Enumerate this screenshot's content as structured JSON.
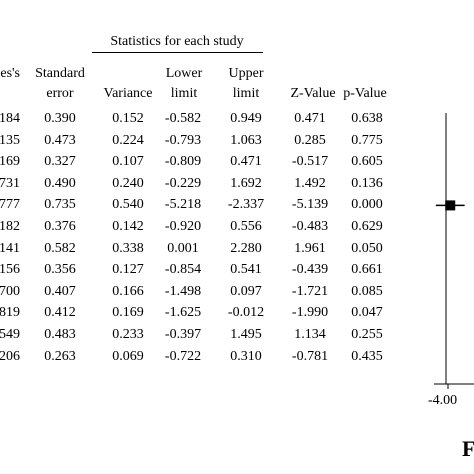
{
  "chart_data": {
    "type": "table",
    "title": "Statistics for each study",
    "columns": [
      {
        "key": "hedges",
        "header_lines": [
          "es's"
        ]
      },
      {
        "key": "se",
        "header_lines": [
          "Standard",
          "error"
        ]
      },
      {
        "key": "var",
        "header_lines": [
          "Variance"
        ]
      },
      {
        "key": "lower",
        "header_lines": [
          "Lower",
          "limit"
        ]
      },
      {
        "key": "upper",
        "header_lines": [
          "Upper",
          "limit"
        ]
      },
      {
        "key": "z",
        "header_lines": [
          "Z-Value"
        ]
      },
      {
        "key": "p",
        "header_lines": [
          "p-Value"
        ]
      }
    ],
    "rows": [
      [
        "184",
        "0.390",
        "0.152",
        "-0.582",
        "0.949",
        "0.471",
        "0.638"
      ],
      [
        "135",
        "0.473",
        "0.224",
        "-0.793",
        "1.063",
        "0.285",
        "0.775"
      ],
      [
        "169",
        "0.327",
        "0.107",
        "-0.809",
        "0.471",
        "-0.517",
        "0.605"
      ],
      [
        "731",
        "0.490",
        "0.240",
        "-0.229",
        "1.692",
        "1.492",
        "0.136"
      ],
      [
        "777",
        "0.735",
        "0.540",
        "-5.218",
        "-2.337",
        "-5.139",
        "0.000"
      ],
      [
        "182",
        "0.376",
        "0.142",
        "-0.920",
        "0.556",
        "-0.483",
        "0.629"
      ],
      [
        "141",
        "0.582",
        "0.338",
        "0.001",
        "2.280",
        "1.961",
        "0.050"
      ],
      [
        "156",
        "0.356",
        "0.127",
        "-0.854",
        "0.541",
        "-0.439",
        "0.661"
      ],
      [
        "700",
        "0.407",
        "0.166",
        "-1.498",
        "0.097",
        "-1.721",
        "0.085"
      ],
      [
        "819",
        "0.412",
        "0.169",
        "-1.625",
        "-0.012",
        "-1.990",
        "0.047"
      ],
      [
        "549",
        "0.483",
        "0.233",
        "-0.397",
        "1.495",
        "1.134",
        "0.255"
      ],
      [
        "206",
        "0.263",
        "0.069",
        "-0.722",
        "0.310",
        "-0.781",
        "0.435"
      ]
    ],
    "forest": {
      "axis_tick_labels": [
        "-4.00"
      ],
      "visible_row_index": 4,
      "visible_point": -3.777,
      "visible_ci": [
        -5.218,
        -2.337
      ]
    },
    "corner_text": "F"
  }
}
